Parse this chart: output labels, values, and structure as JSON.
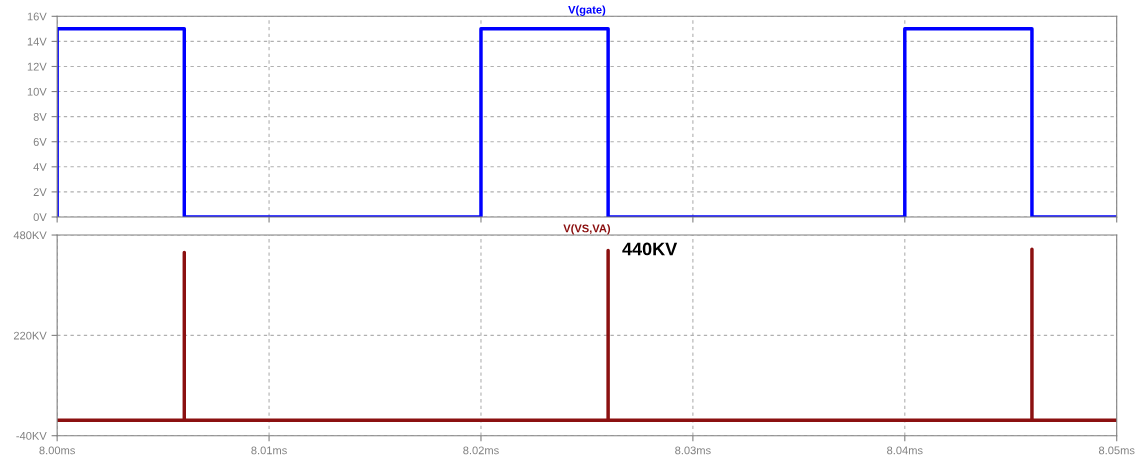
{
  "chart_data": [
    {
      "type": "line",
      "title": "V(gate)",
      "tick_labels": "y",
      "grid": true,
      "xlim": [
        8.0,
        8.05
      ],
      "xticks": [
        {
          "value": 8.0,
          "label": null
        },
        {
          "value": 8.01,
          "label": null
        },
        {
          "value": 8.02,
          "label": null
        },
        {
          "value": 8.03,
          "label": null
        },
        {
          "value": 8.04,
          "label": null
        },
        {
          "value": 8.05,
          "label": null
        }
      ],
      "ylim": [
        0,
        16
      ],
      "yticks": [
        {
          "value": 0,
          "label": "0V"
        },
        {
          "value": 2,
          "label": "2V"
        },
        {
          "value": 4,
          "label": "4V"
        },
        {
          "value": 6,
          "label": "6V"
        },
        {
          "value": 8,
          "label": "8V"
        },
        {
          "value": 10,
          "label": "10V"
        },
        {
          "value": 12,
          "label": "12V"
        },
        {
          "value": 14,
          "label": "14V"
        },
        {
          "value": 16,
          "label": "16V"
        }
      ],
      "series": [
        {
          "color": "#0000ff",
          "x": [
            8.0,
            8.0,
            8.006,
            8.006,
            8.02,
            8.02,
            8.026,
            8.026,
            8.04,
            8.04,
            8.046,
            8.046,
            8.05
          ],
          "values": [
            0,
            15,
            15,
            0,
            0,
            15,
            15,
            0,
            0,
            15,
            15,
            0,
            0
          ]
        }
      ]
    },
    {
      "type": "line",
      "title": "V(VS,VA)",
      "grid": true,
      "xlim": [
        8.0,
        8.05
      ],
      "xticks": [
        {
          "value": 8.0,
          "label": "8.00ms"
        },
        {
          "value": 8.01,
          "label": "8.01ms"
        },
        {
          "value": 8.02,
          "label": "8.02ms"
        },
        {
          "value": 8.03,
          "label": "8.03ms"
        },
        {
          "value": 8.04,
          "label": "8.04ms"
        },
        {
          "value": 8.05,
          "label": "8.05ms"
        }
      ],
      "ylim": [
        -40,
        480
      ],
      "yticks": [
        {
          "value": -40,
          "label": "-40KV"
        },
        {
          "value": 220,
          "label": "220KV"
        },
        {
          "value": 480,
          "label": "480KV"
        }
      ],
      "annotations": [
        {
          "text": "440KV",
          "x": 8.026,
          "y": 440
        }
      ],
      "series": [
        {
          "color": "#8b1010",
          "x": [
            8.0,
            8.006,
            8.006,
            8.006,
            8.026,
            8.026,
            8.026,
            8.046,
            8.046,
            8.046,
            8.05
          ],
          "values": [
            0,
            0,
            435,
            0,
            0,
            440,
            0,
            0,
            443,
            0,
            0
          ]
        }
      ]
    }
  ]
}
